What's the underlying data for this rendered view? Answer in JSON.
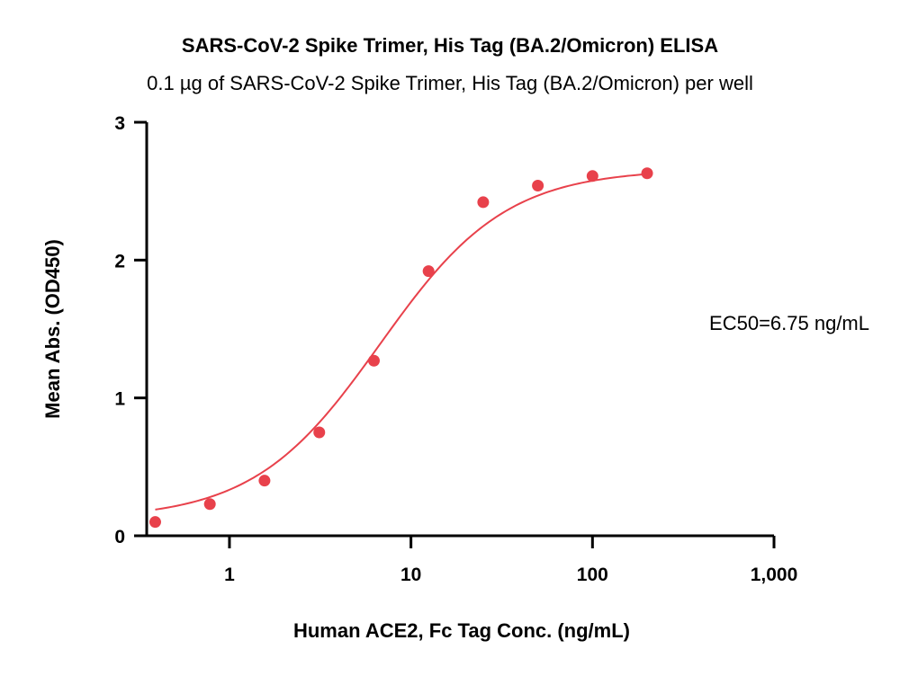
{
  "chart_data": {
    "type": "scatter",
    "title": "SARS-CoV-2 Spike Trimer, His Tag (BA.2/Omicron) ELISA",
    "subtitle": "0.1 µg of SARS-CoV-2 Spike Trimer, His Tag (BA.2/Omicron) per well",
    "xlabel": "Human ACE2, Fc Tag Conc. (ng/mL)",
    "ylabel": "Mean Abs. (OD450)",
    "xscale": "log",
    "xlim": [
      0.35,
      1000
    ],
    "ylim": [
      0,
      3
    ],
    "x_ticks": [
      {
        "value": 1,
        "label": "1"
      },
      {
        "value": 10,
        "label": "10"
      },
      {
        "value": 100,
        "label": "100"
      },
      {
        "value": 1000,
        "label": "1,000"
      }
    ],
    "y_ticks": [
      {
        "value": 0,
        "label": "0"
      },
      {
        "value": 1,
        "label": "1"
      },
      {
        "value": 2,
        "label": "2"
      },
      {
        "value": 3,
        "label": "3"
      }
    ],
    "grid": false,
    "series": [
      {
        "color": "#e8414b",
        "x": [
          0.39,
          0.78,
          1.56,
          3.125,
          6.25,
          12.5,
          25,
          50,
          100,
          200
        ],
        "y": [
          0.1,
          0.23,
          0.4,
          0.75,
          1.27,
          1.92,
          2.42,
          2.54,
          2.61,
          2.63
        ],
        "fit": "4PL"
      }
    ],
    "annotations": [
      {
        "text": "EC50=6.75 ng/mL"
      }
    ]
  }
}
